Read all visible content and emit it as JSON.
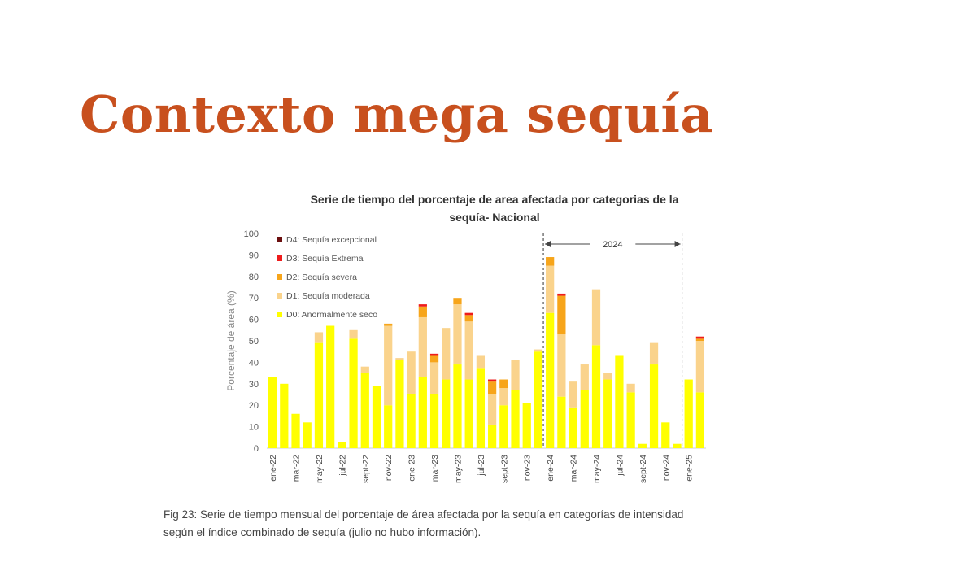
{
  "slide": {
    "title": "Contexto mega sequía"
  },
  "caption": {
    "line1": "Fig 23: Serie de tiempo mensual del porcentaje de área afectada por la sequía en categorías de intensidad",
    "line2": "según el índice combinado de sequía (julio no hubo información)."
  },
  "chart_data": {
    "type": "bar",
    "stacked": true,
    "title_line1": "Serie de tiempo del porcentaje de area afectada por categorias de la",
    "title_line2": "sequía- Nacional",
    "xlabel": "",
    "ylabel": "Porcentaje de área (%)",
    "ylim": [
      0,
      100
    ],
    "yticks": [
      0,
      10,
      20,
      30,
      40,
      50,
      60,
      70,
      80,
      90,
      100
    ],
    "grid": false,
    "legend_placement": "top-left",
    "x_tick_labels": [
      "ene-22",
      "mar-22",
      "may-22",
      "jul-22",
      "sept-22",
      "nov-22",
      "ene-23",
      "mar-23",
      "may-23",
      "jul-23",
      "sept-23",
      "nov-23",
      "ene-24",
      "mar-24",
      "may-24",
      "jul-24",
      "sept-24",
      "nov-24",
      "ene-25"
    ],
    "categories": [
      "ene-22",
      "feb-22",
      "mar-22",
      "abr-22",
      "may-22",
      "jun-22",
      "jul-22",
      "ago-22",
      "sept-22",
      "oct-22",
      "nov-22",
      "dic-22",
      "ene-23",
      "feb-23",
      "mar-23",
      "abr-23",
      "may-23",
      "jun-23",
      "jul-23",
      "ago-23",
      "sept-23",
      "oct-23",
      "nov-23",
      "dic-23",
      "ene-24",
      "feb-24",
      "mar-24",
      "abr-24",
      "may-24",
      "jun-24",
      "jul-24",
      "ago-24",
      "sept-24",
      "oct-24",
      "nov-24",
      "dic-24",
      "ene-25",
      "feb-25"
    ],
    "series": [
      {
        "name": "D0: Anormalmente seco",
        "color": "#ffff00",
        "values": [
          33,
          30,
          16,
          12,
          49,
          57,
          3,
          51,
          35,
          29,
          20,
          41,
          25,
          33,
          25,
          32,
          39,
          32,
          37,
          11,
          20,
          27,
          21,
          45,
          63,
          24,
          19,
          27,
          48,
          32,
          43,
          26,
          2,
          39,
          12,
          2,
          32,
          26
        ]
      },
      {
        "name": "D1: Sequía moderada",
        "color": "#fad38c",
        "values": [
          0,
          0,
          0,
          0,
          5,
          0,
          0,
          4,
          3,
          0,
          37,
          1,
          20,
          28,
          15,
          24,
          28,
          27,
          6,
          14,
          8,
          14,
          0,
          1,
          22,
          29,
          12,
          12,
          26,
          3,
          0,
          4,
          0,
          10,
          0,
          0,
          0,
          24
        ]
      },
      {
        "name": "D2: Sequía severa",
        "color": "#f7a51a",
        "values": [
          0,
          0,
          0,
          0,
          0,
          0,
          0,
          0,
          0,
          0,
          1,
          0,
          0,
          5,
          3,
          0,
          3,
          3,
          0,
          6,
          4,
          0,
          0,
          0,
          4,
          18,
          0,
          0,
          0,
          0,
          0,
          0,
          0,
          0,
          0,
          0,
          0,
          1
        ]
      },
      {
        "name": "D3: Sequía Extrema",
        "color": "#ee1c1c",
        "values": [
          0,
          0,
          0,
          0,
          0,
          0,
          0,
          0,
          0,
          0,
          0,
          0,
          0,
          1,
          1,
          0,
          0,
          1,
          0,
          1,
          0,
          0,
          0,
          0,
          0,
          1,
          0,
          0,
          0,
          0,
          0,
          0,
          0,
          0,
          0,
          0,
          0,
          1
        ]
      },
      {
        "name": "D4: Sequía excepcional",
        "color": "#6b0f0f",
        "values": [
          0,
          0,
          0,
          0,
          0,
          0,
          0,
          0,
          0,
          0,
          0,
          0,
          0,
          0,
          0,
          0,
          0,
          0,
          0,
          0,
          0,
          0,
          0,
          0,
          0,
          0,
          0,
          0,
          0,
          0,
          0,
          0,
          0,
          0,
          0,
          0,
          0,
          0
        ]
      }
    ],
    "legend_order": [
      "D4: Sequía excepcional",
      "D3: Sequía Extrema",
      "D2: Sequía severa",
      "D1: Sequía moderada",
      "D0: Anormalmente seco"
    ],
    "annotation": {
      "label": "2024",
      "from": "ene-24",
      "to": "ene-25"
    }
  }
}
